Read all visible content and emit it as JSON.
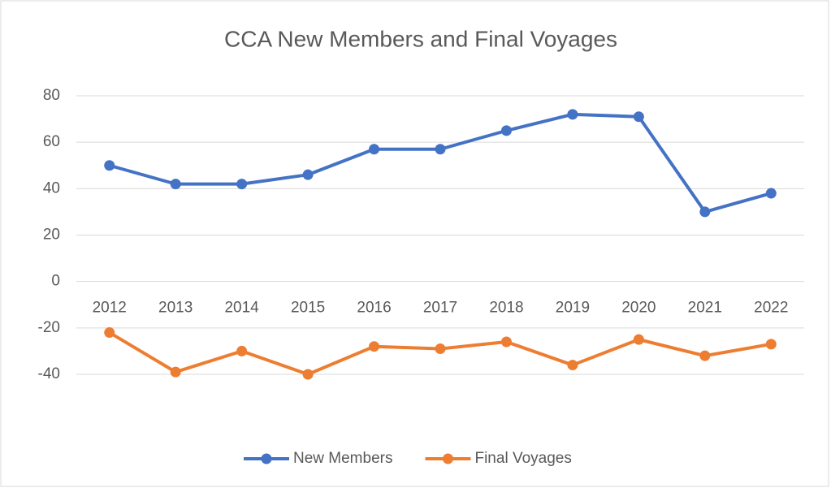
{
  "chart_data": {
    "type": "line",
    "title": "CCA New Members and Final Voyages",
    "categories": [
      "2012",
      "2013",
      "2014",
      "2015",
      "2016",
      "2017",
      "2018",
      "2019",
      "2020",
      "2021",
      "2022"
    ],
    "series": [
      {
        "name": "New Members",
        "color": "#4472c4",
        "values": [
          50,
          42,
          42,
          46,
          57,
          57,
          65,
          72,
          71,
          30,
          38
        ]
      },
      {
        "name": "Final Voyages",
        "color": "#ed7d31",
        "values": [
          -22,
          -39,
          -30,
          -40,
          -28,
          -29,
          -26,
          -36,
          -25,
          -32,
          -27
        ]
      }
    ],
    "ylim": [
      -40,
      80
    ],
    "yticks": [
      -40,
      -20,
      0,
      20,
      40,
      60,
      80
    ],
    "grid": true,
    "legend": "bottom"
  }
}
